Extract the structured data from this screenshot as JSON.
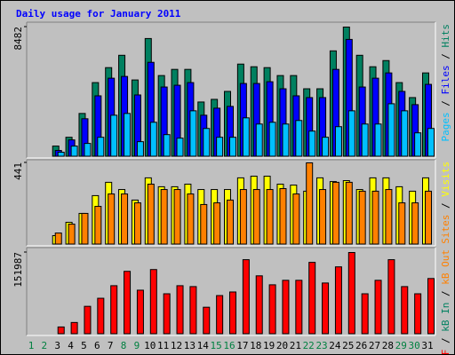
{
  "chart_data": {
    "type": "bar",
    "title": "Daily usage for January 2011",
    "categories": [
      "1",
      "2",
      "3",
      "4",
      "5",
      "6",
      "7",
      "8",
      "9",
      "10",
      "11",
      "12",
      "13",
      "14",
      "15",
      "16",
      "17",
      "18",
      "19",
      "20",
      "21",
      "22",
      "23",
      "24",
      "25",
      "26",
      "27",
      "28",
      "29",
      "30",
      "31"
    ],
    "category_colors": [
      "#008040",
      "#008040",
      "#000000",
      "#000000",
      "#000000",
      "#000000",
      "#000000",
      "#008040",
      "#008040",
      "#000000",
      "#000000",
      "#000000",
      "#000000",
      "#000000",
      "#008040",
      "#008040",
      "#000000",
      "#000000",
      "#000000",
      "#000000",
      "#000000",
      "#008040",
      "#008040",
      "#000000",
      "#000000",
      "#000000",
      "#000000",
      "#000000",
      "#008040",
      "#008040",
      "#000000"
    ],
    "legend_separator": " / ",
    "panels": [
      {
        "ylim": [
          0,
          8482
        ],
        "yticks": [
          8482
        ],
        "series": [
          {
            "name": "Pages",
            "color": "#00c0ff",
            "values": [
              0,
              0,
              289,
              692,
              865,
              1269,
              2712,
              2827,
              981,
              2250,
              1442,
              1212,
              3000,
              1846,
              1269,
              1269,
              2539,
              2135,
              2250,
              2135,
              2366,
              1673,
              1269,
              1962,
              3000,
              2135,
              2135,
              3462,
              3000,
              1558,
              1846
            ]
          },
          {
            "name": "Files",
            "color": "#0000ff",
            "values": [
              0,
              0,
              404,
              1096,
              2481,
              3981,
              5135,
              5250,
              4039,
              6174,
              4558,
              4674,
              4847,
              2712,
              3173,
              3289,
              4789,
              4789,
              4904,
              4443,
              3981,
              3866,
              3866,
              5712,
              7674,
              4558,
              5135,
              5481,
              4270,
              3404,
              4731
            ]
          },
          {
            "name": "Hits",
            "color": "#008060",
            "values": [
              0,
              0,
              692,
              1269,
              2827,
              4847,
              5827,
              6635,
              5020,
              7732,
              5308,
              5712,
              5712,
              3577,
              3750,
              4270,
              6058,
              5885,
              5827,
              5308,
              5308,
              4443,
              4443,
              6924,
              8482,
              6635,
              5885,
              6289,
              4847,
              3866,
              5481
            ]
          }
        ]
      },
      {
        "ylim": [
          0,
          441
        ],
        "yticks": [
          441
        ],
        "series": [
          {
            "name": "Sites",
            "color": "#ff8000",
            "values": [
              0,
              0,
              62,
              110,
              168,
              206,
              273,
              273,
              225,
              326,
              297,
              297,
              273,
              216,
              225,
              240,
              297,
              297,
              297,
              302,
              273,
              441,
              297,
              336,
              336,
              288,
              288,
              297,
              225,
              225,
              288
            ]
          },
          {
            "name": "Visits",
            "color": "#ffff00",
            "values": [
              0,
              0,
              48,
              120,
              168,
              264,
              336,
              297,
              240,
              360,
              312,
              312,
              326,
              297,
              297,
              297,
              360,
              369,
              369,
              326,
              321,
              288,
              360,
              340,
              345,
              297,
              360,
              360,
              312,
              288,
              360
            ]
          }
        ]
      },
      {
        "ylim": [
          0,
          151987
        ],
        "yticks": [
          151987
        ],
        "series": [
          {
            "name": "kB F",
            "color": "#ff0000",
            "values": [
              0,
              0,
              13362,
              21713,
              51776,
              66808,
              90191,
              116914,
              81840,
              120254,
              75159,
              90191,
              88521,
              50106,
              71819,
              78499,
              138627,
              108563,
              91861,
              100212,
              100212,
              133616,
              95201,
              125265,
              151987,
              75159,
              100212,
              138627,
              88521,
              75159,
              103552
            ]
          },
          {
            "name": "kB In",
            "color": "#008060",
            "values": [
              0,
              0,
              0,
              0,
              0,
              0,
              0,
              0,
              0,
              0,
              0,
              0,
              0,
              0,
              0,
              0,
              0,
              0,
              0,
              0,
              0,
              0,
              0,
              0,
              0,
              0,
              0,
              0,
              0,
              0,
              0
            ]
          },
          {
            "name": "kB Out",
            "color": "#ff8000",
            "values": [
              0,
              0,
              0,
              0,
              0,
              0,
              0,
              0,
              0,
              0,
              0,
              0,
              0,
              0,
              0,
              0,
              0,
              0,
              0,
              0,
              0,
              0,
              0,
              0,
              0,
              0,
              0,
              0,
              0,
              0,
              0
            ]
          }
        ]
      }
    ]
  }
}
